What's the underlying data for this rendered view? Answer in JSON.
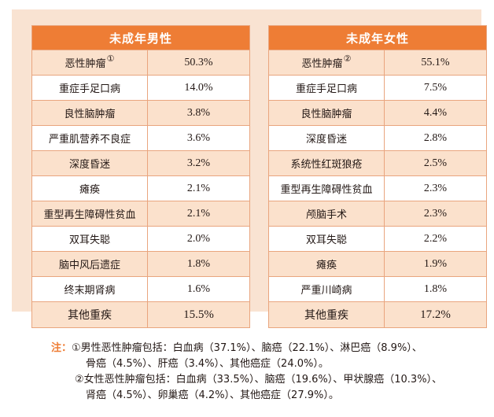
{
  "tables": {
    "male": {
      "title": "未成年男性",
      "rows": [
        {
          "name": "恶性肿瘤",
          "mark": "①",
          "value": "50.3%"
        },
        {
          "name": "重症手足口病",
          "mark": "",
          "value": "14.0%"
        },
        {
          "name": "良性脑肿瘤",
          "mark": "",
          "value": "3.8%"
        },
        {
          "name": "严重肌营养不良症",
          "mark": "",
          "value": "3.6%"
        },
        {
          "name": "深度昏迷",
          "mark": "",
          "value": "3.2%"
        },
        {
          "name": "瘫痪",
          "mark": "",
          "value": "2.1%"
        },
        {
          "name": "重型再生障碍性贫血",
          "mark": "",
          "value": "2.1%"
        },
        {
          "name": "双耳失聪",
          "mark": "",
          "value": "2.0%"
        },
        {
          "name": "脑中风后遗症",
          "mark": "",
          "value": "1.8%"
        },
        {
          "name": "终末期肾病",
          "mark": "",
          "value": "1.6%"
        },
        {
          "name": "其他重疾",
          "mark": "",
          "value": "15.5%"
        }
      ]
    },
    "female": {
      "title": "未成年女性",
      "rows": [
        {
          "name": "恶性肿瘤",
          "mark": "②",
          "value": "55.1%"
        },
        {
          "name": "重症手足口病",
          "mark": "",
          "value": "7.5%"
        },
        {
          "name": "良性脑肿瘤",
          "mark": "",
          "value": "4.4%"
        },
        {
          "name": "深度昏迷",
          "mark": "",
          "value": "2.8%"
        },
        {
          "name": "系统性红斑狼疮",
          "mark": "",
          "value": "2.5%"
        },
        {
          "name": "重型再生障碍性贫血",
          "mark": "",
          "value": "2.3%"
        },
        {
          "name": "颅脑手术",
          "mark": "",
          "value": "2.3%"
        },
        {
          "name": "双耳失聪",
          "mark": "",
          "value": "2.2%"
        },
        {
          "name": "瘫痪",
          "mark": "",
          "value": "1.9%"
        },
        {
          "name": "严重川崎病",
          "mark": "",
          "value": "1.8%"
        },
        {
          "name": "其他重疾",
          "mark": "",
          "value": "17.2%"
        }
      ]
    }
  },
  "notes": {
    "label": "注：",
    "line1": "①男性恶性肿瘤包括：白血病（37.1%）、脑癌（22.1%）、淋巴癌（8.9%）、",
    "line2": "骨癌（4.5%）、肝癌（3.4%）、其他癌症（24.0%）。",
    "line3": "②女性恶性肿瘤包括：白血病（33.5%）、脑癌（19.6%）、甲状腺癌（10.3%）、",
    "line4": "肾癌（4.5%）、卵巢癌（4.2%）、其他癌症（27.9%）。"
  },
  "colors": {
    "header": "#ee7d35",
    "shaded_row": "#fbe1cc",
    "panel_background": "#f9e3d2",
    "border": "#e9a57e",
    "note_label": "#ee7d35"
  }
}
